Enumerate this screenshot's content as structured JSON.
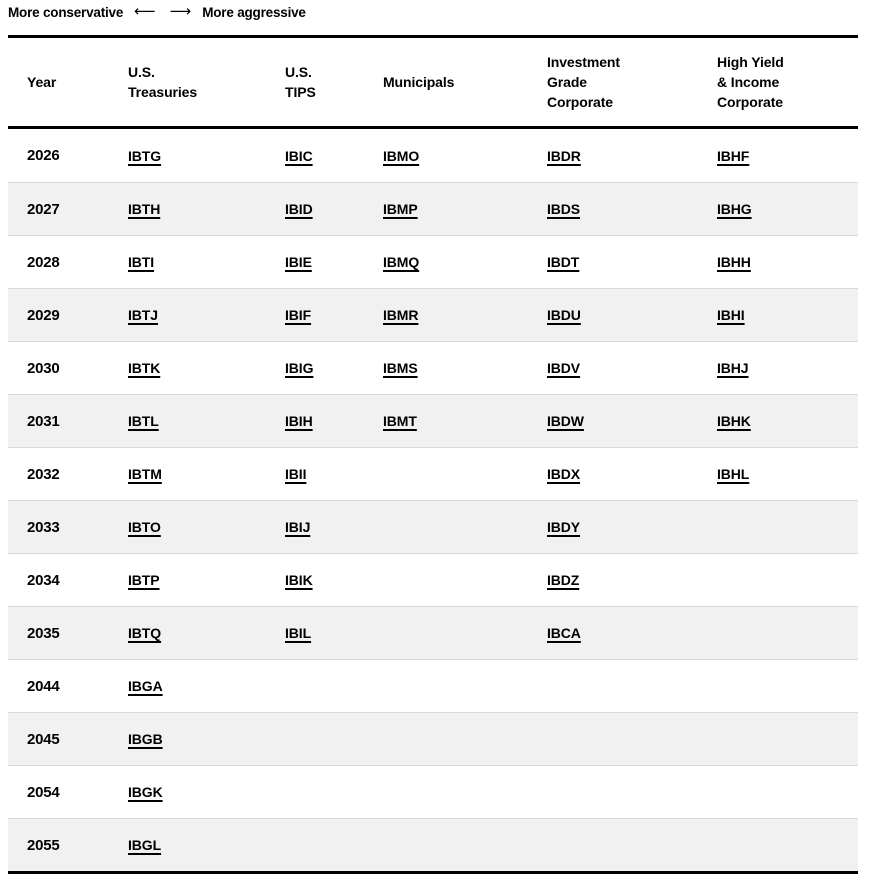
{
  "scale": {
    "conservative_label": "More conservative",
    "aggressive_label": "More aggressive",
    "left_arrow": "⟵",
    "right_arrow": "⟶"
  },
  "table": {
    "columns": [
      {
        "key": "year",
        "label": "Year"
      },
      {
        "key": "us_treasuries",
        "label": [
          "U.S.",
          "Treasuries"
        ]
      },
      {
        "key": "us_tips",
        "label": [
          "U.S.",
          "TIPS"
        ]
      },
      {
        "key": "municipals",
        "label": "Municipals"
      },
      {
        "key": "investment_grade_corporate",
        "label": [
          "Investment",
          "Grade",
          "Corporate"
        ]
      },
      {
        "key": "high_yield_income_corporate",
        "label": [
          "High Yield",
          "& Income",
          "Corporate"
        ]
      }
    ],
    "rows": [
      {
        "year": "2026",
        "tickers": [
          "IBTG",
          "IBIC",
          "IBMO",
          "IBDR",
          "IBHF"
        ]
      },
      {
        "year": "2027",
        "tickers": [
          "IBTH",
          "IBID",
          "IBMP",
          "IBDS",
          "IBHG"
        ]
      },
      {
        "year": "2028",
        "tickers": [
          "IBTI",
          "IBIE",
          "IBMQ",
          "IBDT",
          "IBHH"
        ]
      },
      {
        "year": "2029",
        "tickers": [
          "IBTJ",
          "IBIF",
          "IBMR",
          "IBDU",
          "IBHI"
        ]
      },
      {
        "year": "2030",
        "tickers": [
          "IBTK",
          "IBIG",
          "IBMS",
          "IBDV",
          "IBHJ"
        ]
      },
      {
        "year": "2031",
        "tickers": [
          "IBTL",
          "IBIH",
          "IBMT",
          "IBDW",
          "IBHK"
        ]
      },
      {
        "year": "2032",
        "tickers": [
          "IBTM",
          "IBII",
          "",
          "IBDX",
          "IBHL"
        ]
      },
      {
        "year": "2033",
        "tickers": [
          "IBTO",
          "IBIJ",
          "",
          "IBDY",
          ""
        ]
      },
      {
        "year": "2034",
        "tickers": [
          "IBTP",
          "IBIK",
          "",
          "IBDZ",
          ""
        ]
      },
      {
        "year": "2035",
        "tickers": [
          "IBTQ",
          "IBIL",
          "",
          "IBCA",
          ""
        ]
      },
      {
        "year": "2044",
        "tickers": [
          "IBGA",
          "",
          "",
          "",
          ""
        ]
      },
      {
        "year": "2045",
        "tickers": [
          "IBGB",
          "",
          "",
          "",
          ""
        ]
      },
      {
        "year": "2054",
        "tickers": [
          "IBGK",
          "",
          "",
          "",
          ""
        ]
      },
      {
        "year": "2055",
        "tickers": [
          "IBGL",
          "",
          "",
          "",
          ""
        ]
      }
    ]
  },
  "colors": {
    "text": "#000000",
    "alt_row_background": "#f1f1f1",
    "row_divider": "#d8d8d8",
    "table_border": "#000000"
  }
}
